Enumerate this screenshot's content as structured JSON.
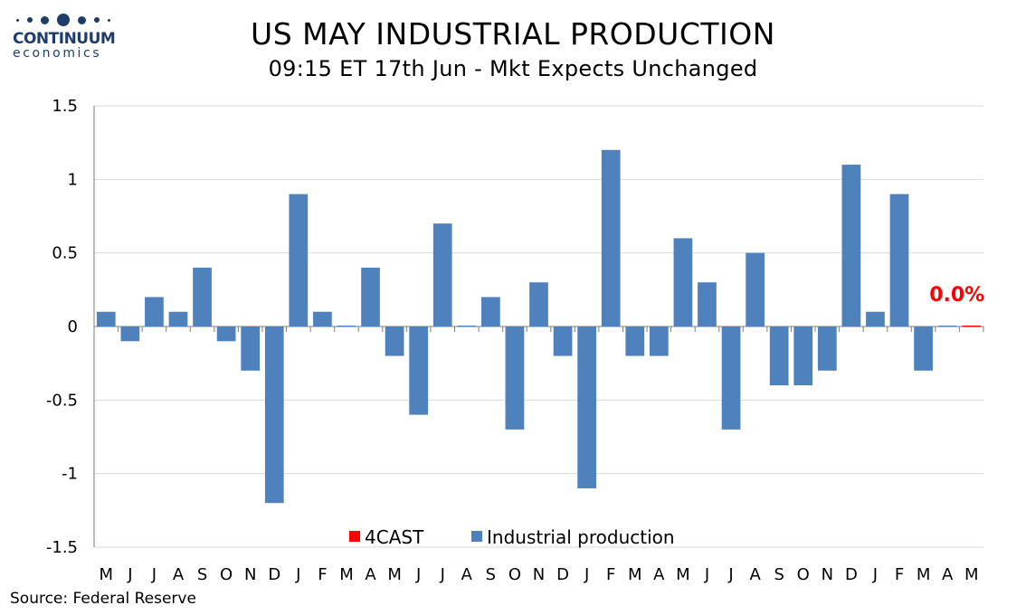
{
  "logo": {
    "name": "CONTINUUM",
    "sub": "economics"
  },
  "title": "US MAY INDUSTRIAL PRODUCTION",
  "subtitle": "09:15 ET 17th Jun - Mkt Expects Unchanged",
  "source": "Source: Federal Reserve",
  "colors": {
    "industrial": "#4f81bd",
    "forecast": "#ff0000",
    "brand": "#1f3d6a",
    "grid": "#d9d9d9"
  },
  "chart_data": {
    "type": "bar",
    "categories": [
      "M",
      "J",
      "J",
      "A",
      "S",
      "O",
      "N",
      "D",
      "J",
      "F",
      "M",
      "A",
      "M",
      "J",
      "J",
      "A",
      "S",
      "O",
      "N",
      "D",
      "J",
      "F",
      "M",
      "A",
      "M",
      "J",
      "J",
      "A",
      "S",
      "O",
      "N",
      "D",
      "J",
      "F",
      "M",
      "A",
      "M"
    ],
    "series": [
      {
        "name": "Industrial production",
        "color": "#4f81bd",
        "values": [
          0.1,
          -0.1,
          0.2,
          0.1,
          0.4,
          -0.1,
          -0.3,
          -1.2,
          0.9,
          0.1,
          0.0,
          0.4,
          -0.2,
          -0.6,
          0.7,
          0.0,
          0.2,
          -0.7,
          0.3,
          -0.2,
          -1.1,
          1.2,
          -0.2,
          -0.2,
          0.6,
          0.3,
          -0.7,
          0.5,
          -0.4,
          -0.4,
          -0.3,
          1.1,
          0.1,
          0.9,
          -0.3,
          0.0,
          null
        ]
      },
      {
        "name": "4CAST",
        "color": "#ff0000",
        "values": [
          null,
          null,
          null,
          null,
          null,
          null,
          null,
          null,
          null,
          null,
          null,
          null,
          null,
          null,
          null,
          null,
          null,
          null,
          null,
          null,
          null,
          null,
          null,
          null,
          null,
          null,
          null,
          null,
          null,
          null,
          null,
          null,
          null,
          null,
          null,
          null,
          0.0
        ]
      }
    ],
    "ylim": [
      -1.5,
      1.5
    ],
    "yticks": [
      "-1.5",
      "-1",
      "-0.5",
      "0",
      "0.5",
      "1",
      "1.5"
    ],
    "ytick_values": [
      -1.5,
      -1,
      -0.5,
      0,
      0.5,
      1,
      1.5
    ],
    "grid": true,
    "legend_position": "bottom-center",
    "annotation": "0.0%"
  }
}
